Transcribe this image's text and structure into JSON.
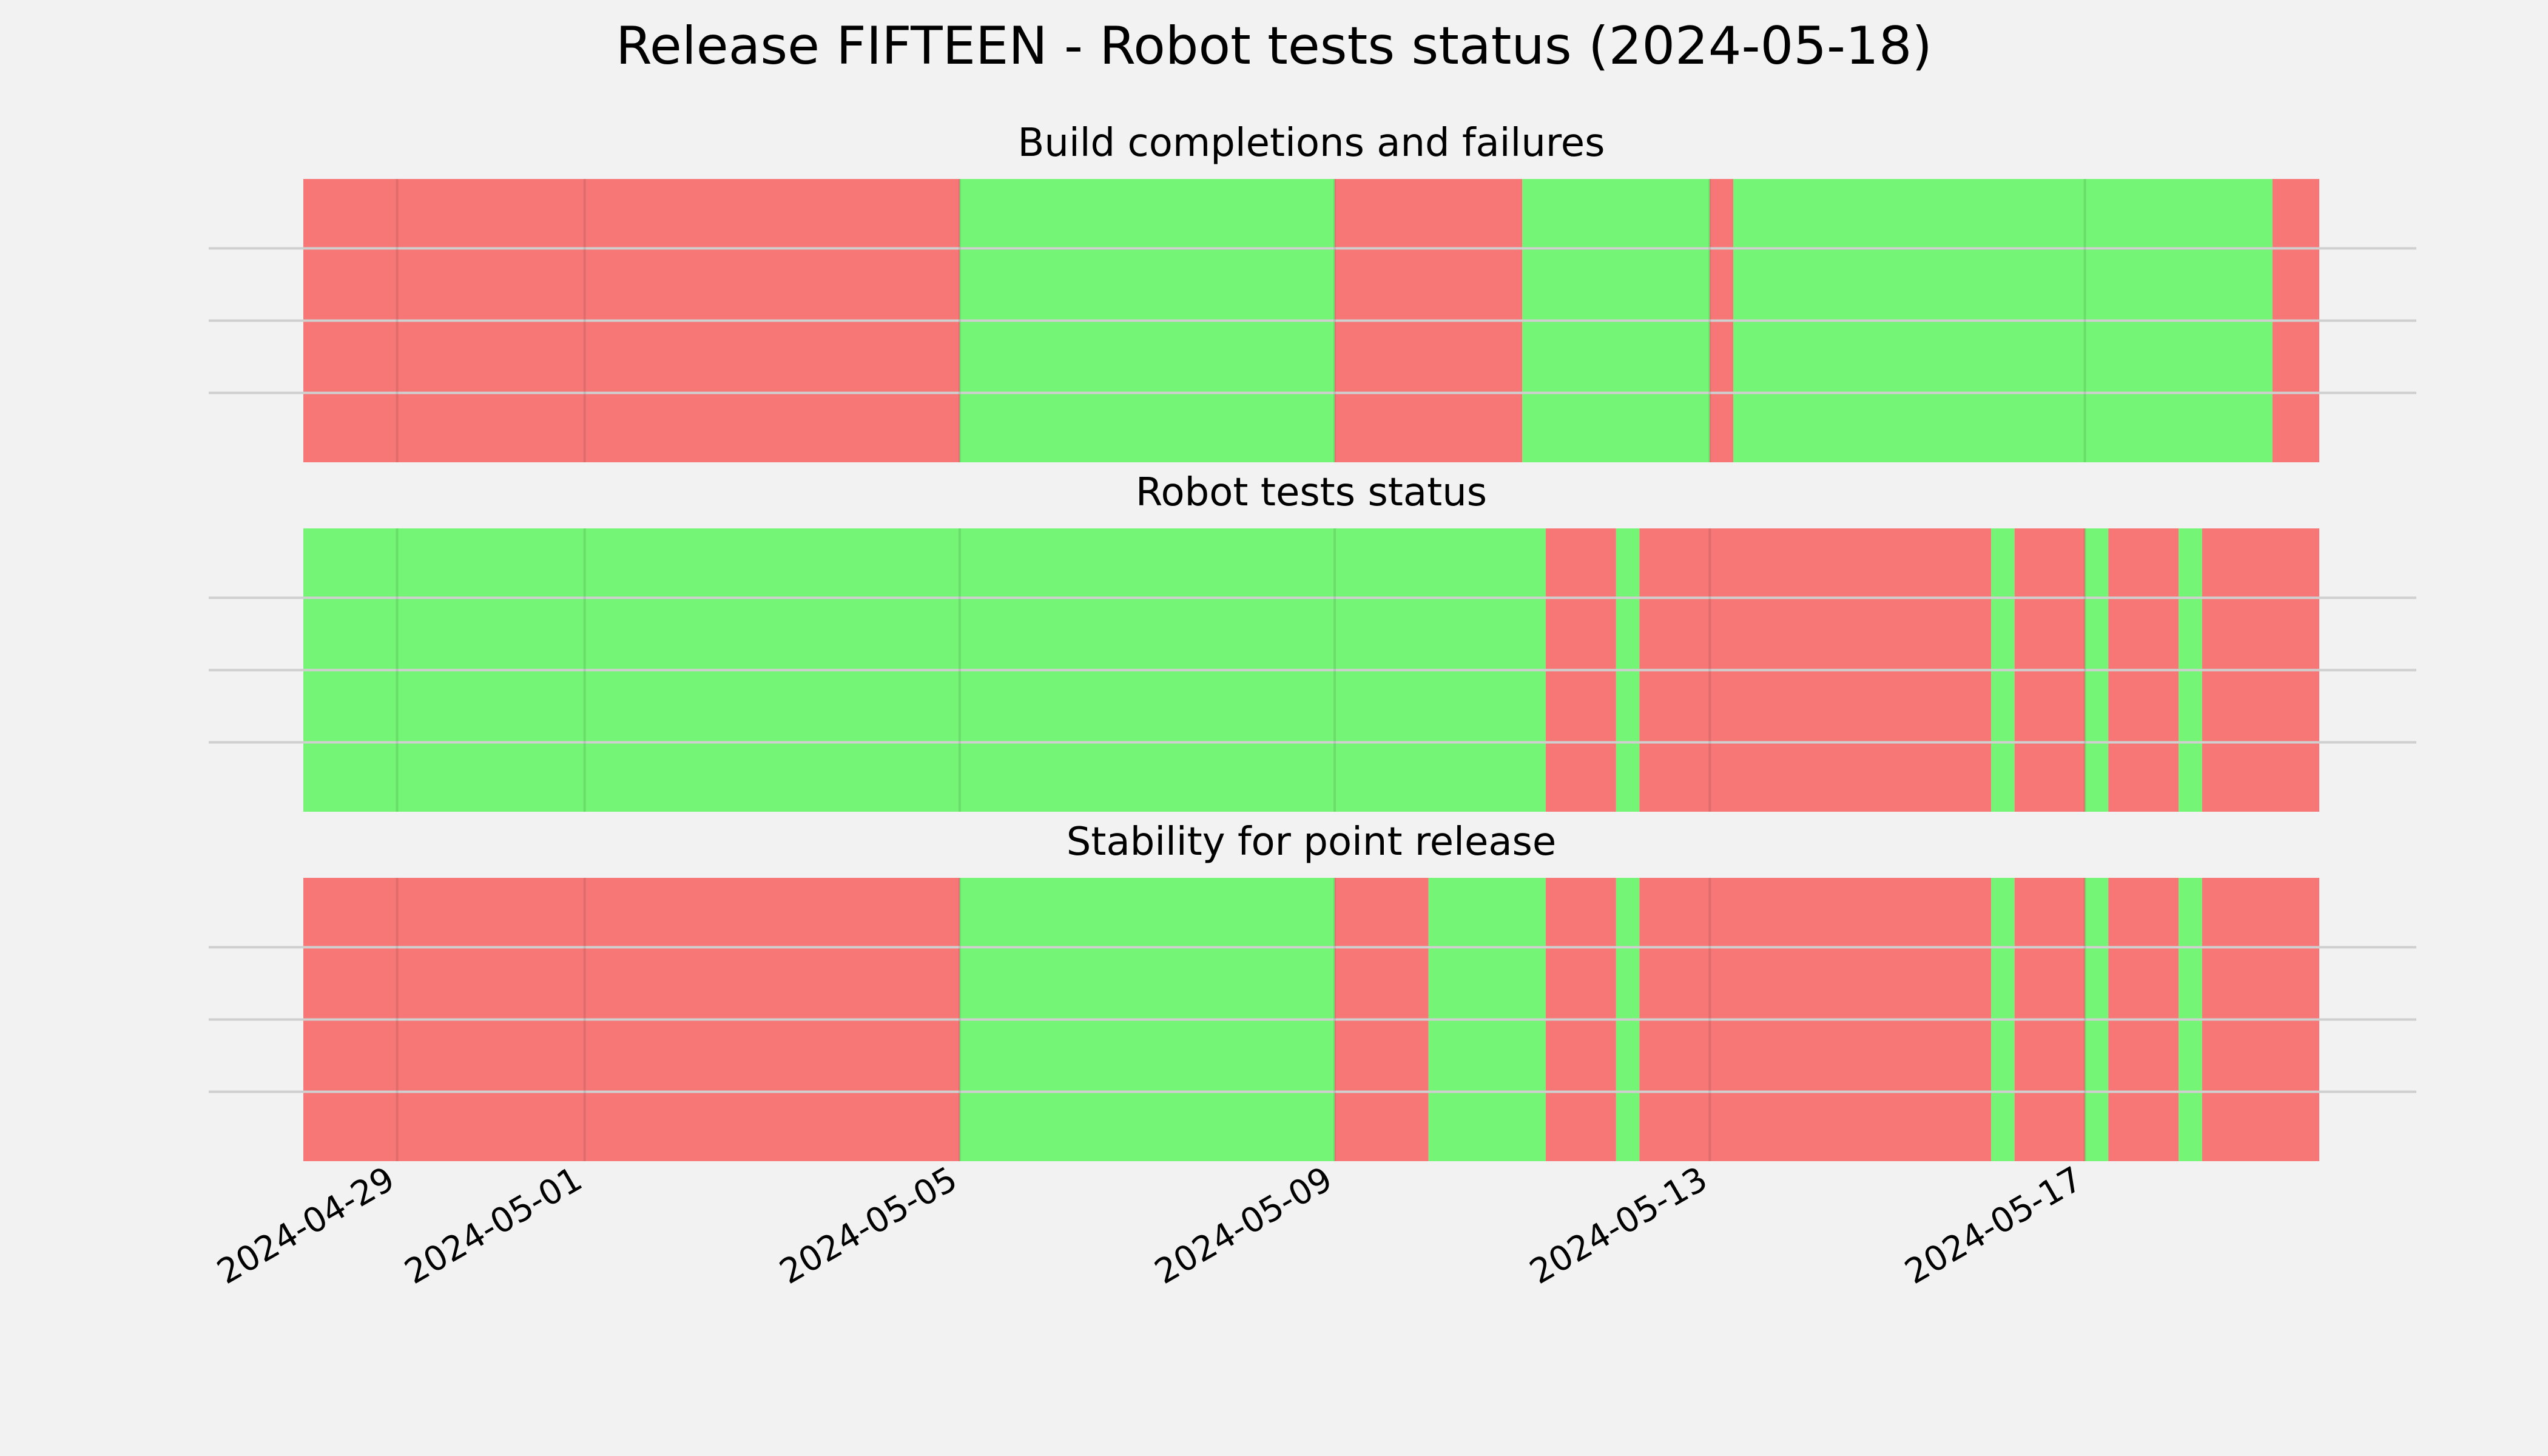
{
  "title": "Release FIFTEEN - Robot tests status (2024-05-18)",
  "colors": {
    "background": "#f2f2f2",
    "pass": "#75f575",
    "fail": "#f77777",
    "grid_h": "#cfcfcf",
    "grid_v_on_fail": "#e06a6a",
    "grid_v_on_pass": "#66dd66"
  },
  "chart_data": [
    {
      "type": "timeline",
      "title": "Build completions and failures",
      "xlim": [
        "2024-04-28 00:00",
        "2024-05-19 12:00"
      ],
      "x_ticks": [
        "2024-04-29",
        "2024-05-01",
        "2024-05-05",
        "2024-05-09",
        "2024-05-13",
        "2024-05-17"
      ],
      "grid": true,
      "segments": [
        {
          "start": "2024-04-28 00:00",
          "end": "2024-05-05 00:00",
          "status": "fail"
        },
        {
          "start": "2024-05-05 00:00",
          "end": "2024-05-09 00:00",
          "status": "pass"
        },
        {
          "start": "2024-05-09 00:00",
          "end": "2024-05-11 00:00",
          "status": "fail"
        },
        {
          "start": "2024-05-11 00:00",
          "end": "2024-05-13 00:00",
          "status": "pass"
        },
        {
          "start": "2024-05-13 00:00",
          "end": "2024-05-13 06:00",
          "status": "fail"
        },
        {
          "start": "2024-05-13 06:00",
          "end": "2024-05-19 00:00",
          "status": "pass"
        },
        {
          "start": "2024-05-19 00:00",
          "end": "2024-05-19 12:00",
          "status": "fail"
        }
      ]
    },
    {
      "type": "timeline",
      "title": "Robot tests status",
      "xlim": [
        "2024-04-28 00:00",
        "2024-05-19 12:00"
      ],
      "x_ticks": [
        "2024-04-29",
        "2024-05-01",
        "2024-05-05",
        "2024-05-09",
        "2024-05-13",
        "2024-05-17"
      ],
      "grid": true,
      "segments": [
        {
          "start": "2024-04-28 00:00",
          "end": "2024-05-11 06:00",
          "status": "pass"
        },
        {
          "start": "2024-05-11 06:00",
          "end": "2024-05-12 00:00",
          "status": "fail"
        },
        {
          "start": "2024-05-12 00:00",
          "end": "2024-05-12 06:00",
          "status": "pass"
        },
        {
          "start": "2024-05-12 06:00",
          "end": "2024-05-16 00:00",
          "status": "fail"
        },
        {
          "start": "2024-05-16 00:00",
          "end": "2024-05-16 06:00",
          "status": "pass"
        },
        {
          "start": "2024-05-16 06:00",
          "end": "2024-05-17 00:00",
          "status": "fail"
        },
        {
          "start": "2024-05-17 00:00",
          "end": "2024-05-17 06:00",
          "status": "pass"
        },
        {
          "start": "2024-05-17 06:00",
          "end": "2024-05-18 00:00",
          "status": "fail"
        },
        {
          "start": "2024-05-18 00:00",
          "end": "2024-05-18 06:00",
          "status": "pass"
        },
        {
          "start": "2024-05-18 06:00",
          "end": "2024-05-19 12:00",
          "status": "fail"
        }
      ]
    },
    {
      "type": "timeline",
      "title": "Stability for point release",
      "xlim": [
        "2024-04-28 00:00",
        "2024-05-19 12:00"
      ],
      "x_ticks": [
        "2024-04-29",
        "2024-05-01",
        "2024-05-05",
        "2024-05-09",
        "2024-05-13",
        "2024-05-17"
      ],
      "grid": true,
      "segments": [
        {
          "start": "2024-04-28 00:00",
          "end": "2024-05-05 00:00",
          "status": "fail"
        },
        {
          "start": "2024-05-05 00:00",
          "end": "2024-05-09 00:00",
          "status": "pass"
        },
        {
          "start": "2024-05-09 00:00",
          "end": "2024-05-10 00:00",
          "status": "fail"
        },
        {
          "start": "2024-05-10 00:00",
          "end": "2024-05-11 06:00",
          "status": "pass"
        },
        {
          "start": "2024-05-11 06:00",
          "end": "2024-05-12 00:00",
          "status": "fail"
        },
        {
          "start": "2024-05-12 00:00",
          "end": "2024-05-12 06:00",
          "status": "pass"
        },
        {
          "start": "2024-05-12 06:00",
          "end": "2024-05-16 00:00",
          "status": "fail"
        },
        {
          "start": "2024-05-16 00:00",
          "end": "2024-05-16 06:00",
          "status": "pass"
        },
        {
          "start": "2024-05-16 06:00",
          "end": "2024-05-17 00:00",
          "status": "fail"
        },
        {
          "start": "2024-05-17 00:00",
          "end": "2024-05-17 06:00",
          "status": "pass"
        },
        {
          "start": "2024-05-17 06:00",
          "end": "2024-05-18 00:00",
          "status": "fail"
        },
        {
          "start": "2024-05-18 00:00",
          "end": "2024-05-18 06:00",
          "status": "pass"
        },
        {
          "start": "2024-05-18 06:00",
          "end": "2024-05-19 12:00",
          "status": "fail"
        }
      ]
    }
  ]
}
